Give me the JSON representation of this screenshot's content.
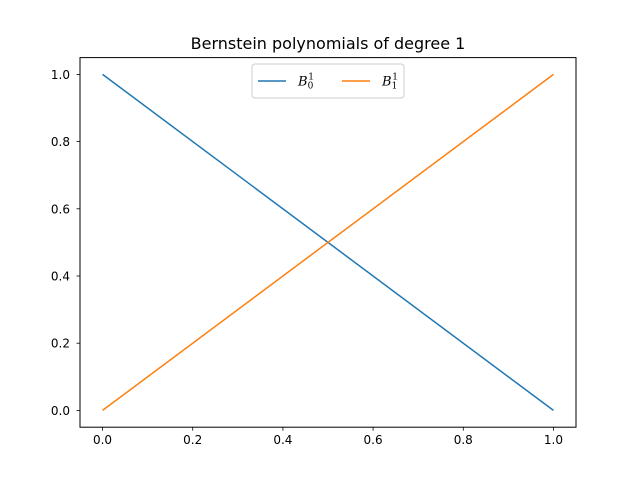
{
  "chart_data": {
    "type": "line",
    "title": "Bernstein polynomials of degree 1",
    "xlabel": "",
    "ylabel": "",
    "xlim": [
      -0.05,
      1.05
    ],
    "ylim": [
      -0.05,
      1.05
    ],
    "xticks": [
      0.0,
      0.2,
      0.4,
      0.6,
      0.8,
      1.0
    ],
    "yticks": [
      0.0,
      0.2,
      0.4,
      0.6,
      0.8,
      1.0
    ],
    "xtick_labels": [
      "0.0",
      "0.2",
      "0.4",
      "0.6",
      "0.8",
      "1.0"
    ],
    "ytick_labels": [
      "0.0",
      "0.2",
      "0.4",
      "0.6",
      "0.8",
      "1.0"
    ],
    "grid": false,
    "legend_position": "top-center",
    "series": [
      {
        "name": "B",
        "sub": "0",
        "sup": "1",
        "color": "#1f77b4",
        "x": [
          0.0,
          1.0
        ],
        "y": [
          1.0,
          0.0
        ]
      },
      {
        "name": "B",
        "sub": "1",
        "sup": "1",
        "color": "#ff7f0e",
        "x": [
          0.0,
          1.0
        ],
        "y": [
          0.0,
          1.0
        ]
      }
    ]
  }
}
